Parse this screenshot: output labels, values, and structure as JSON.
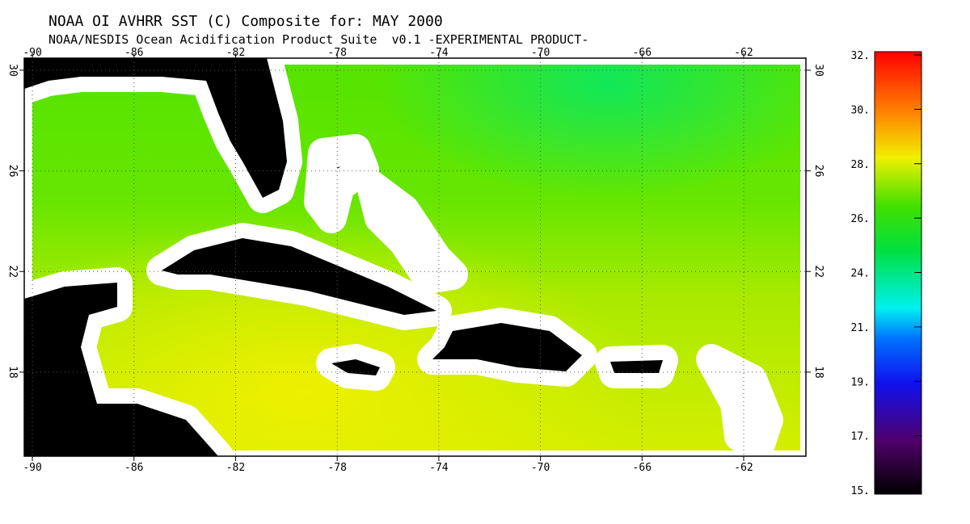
{
  "header": {
    "title": "NOAA OI AVHRR SST (C) Composite for: MAY 2000",
    "subtitle": "NOAA/NESDIS Ocean Acidification Product Suite  v0.1 -EXPERIMENTAL PRODUCT-"
  },
  "map": {
    "xlim": [
      -90.32,
      -59.55
    ],
    "ylim": [
      14.66,
      30.48
    ],
    "lon_ticks": [
      -90,
      -86,
      -82,
      -78,
      -74,
      -70,
      -66,
      -62
    ],
    "lat_ticks": [
      18,
      22,
      26,
      30
    ]
  },
  "colorbar": {
    "lim": [
      15,
      32
    ],
    "ticks": [
      {
        "value": 15,
        "label": "15."
      },
      {
        "value": 17.125,
        "label": "17."
      },
      {
        "value": 19.25,
        "label": "19."
      },
      {
        "value": 21.375,
        "label": "21."
      },
      {
        "value": 23.5,
        "label": "24."
      },
      {
        "value": 25.625,
        "label": "26."
      },
      {
        "value": 27.75,
        "label": "28."
      },
      {
        "value": 29.875,
        "label": "30."
      },
      {
        "value": 32,
        "label": "32."
      }
    ]
  }
}
